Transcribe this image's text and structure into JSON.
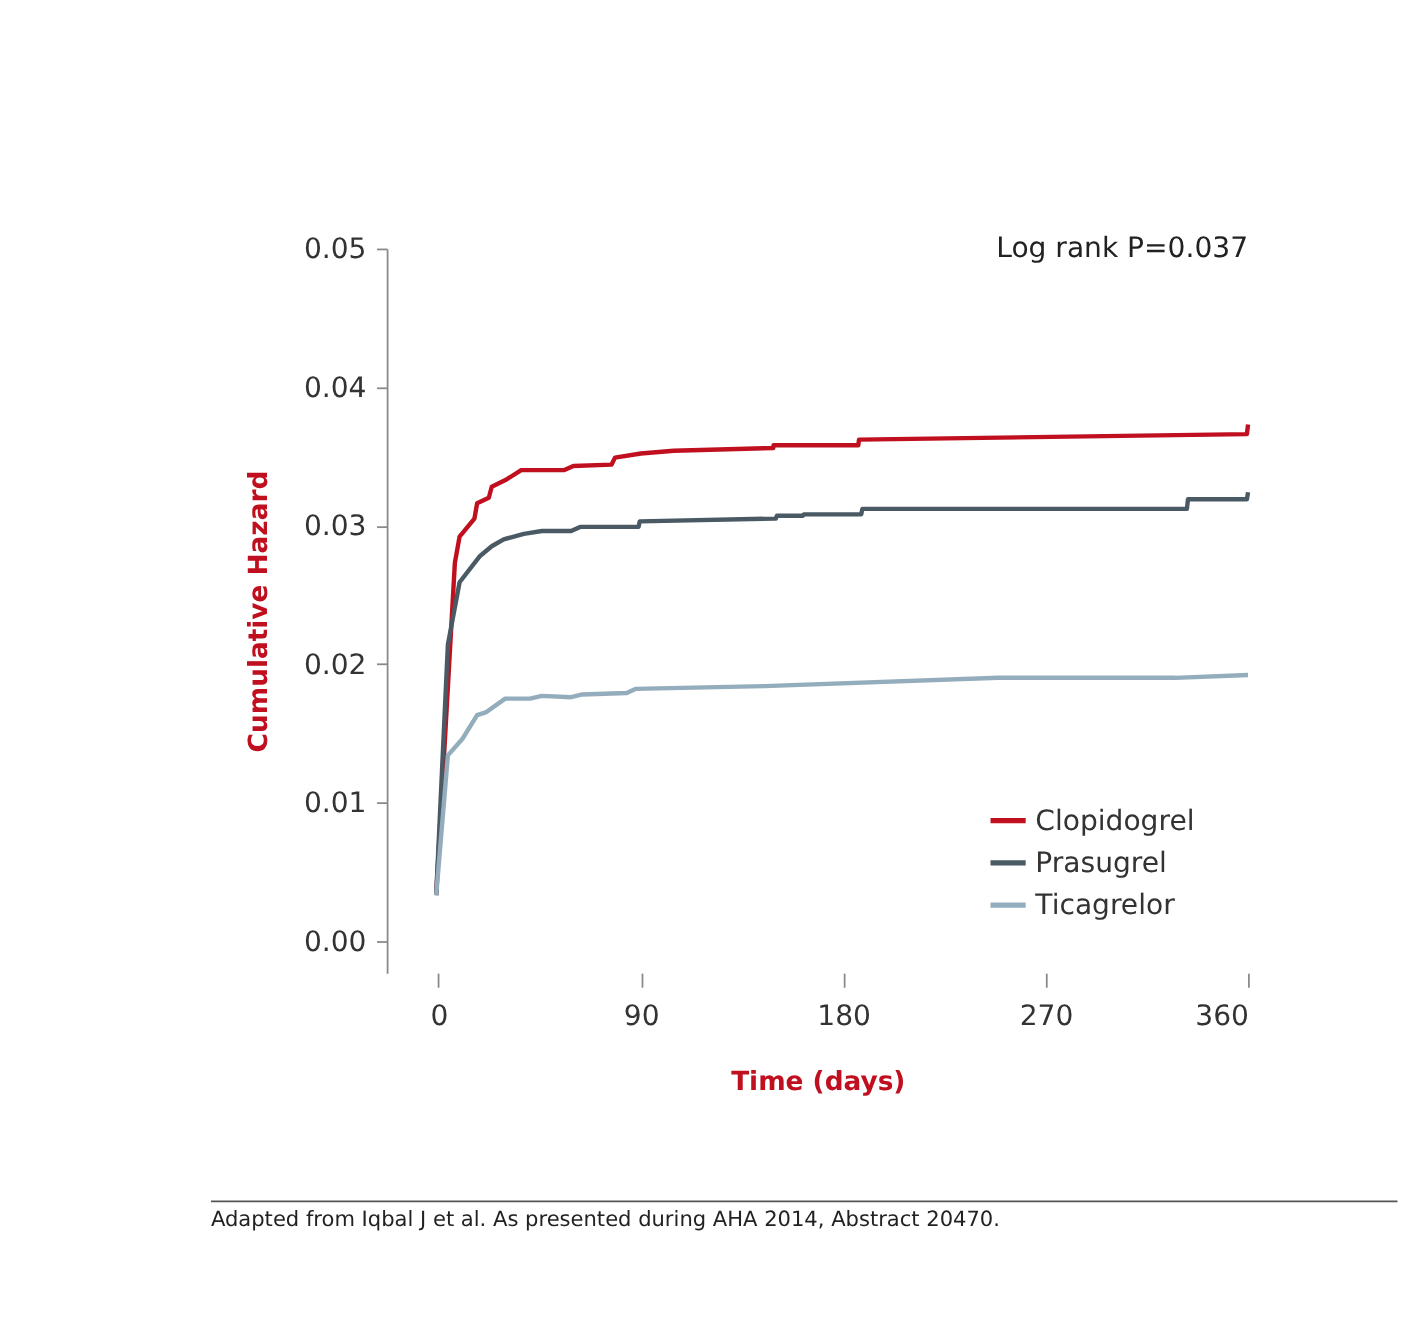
{
  "chart_data": {
    "type": "line",
    "xlabel": "Time (days)",
    "ylabel": "Cumulative Hazard",
    "xlim": [
      -23,
      360
    ],
    "xticks": [
      0,
      90,
      180,
      270,
      360
    ],
    "ylim": [
      -0.0023,
      0.05
    ],
    "yticks": [
      {
        "value": 0,
        "label": "0.00"
      },
      0.01,
      0.02,
      0.03,
      0.04,
      0.05
    ],
    "grid": false,
    "legend": "bottom right",
    "marker": "none",
    "line_style": "solid",
    "series": [
      {
        "name": "Clopidogrel",
        "color": "#c0101f",
        "x": [
          -1,
          7.3,
          9.4,
          16,
          17.2,
          22.4,
          23.7,
          30,
          36.8,
          56,
          60,
          77,
          78.5,
          90,
          104.6,
          148.9,
          149,
          186.7,
          187,
          359.5,
          360
        ],
        "values": [
          0.0033,
          0.0273,
          0.0292,
          0.0305,
          0.0316,
          0.032,
          0.0328,
          0.0333,
          0.034,
          0.034,
          0.0343,
          0.0344,
          0.0349,
          0.0352,
          0.0354,
          0.0356,
          0.0358,
          0.0358,
          0.0362,
          0.0366,
          0.0373
        ]
      },
      {
        "name": "Prasugrel",
        "color": "#4a5a65",
        "x": [
          -1,
          4.2,
          9.4,
          18.5,
          23.7,
          29,
          38,
          46,
          59,
          63,
          89,
          89.5,
          150,
          150.5,
          162,
          162.5,
          188,
          188.5,
          332.8,
          333.3,
          359.5,
          360
        ],
        "values": [
          0.0033,
          0.0214,
          0.0259,
          0.0278,
          0.0285,
          0.029,
          0.0294,
          0.0296,
          0.0296,
          0.0299,
          0.0299,
          0.0303,
          0.0305,
          0.0307,
          0.0307,
          0.0308,
          0.0308,
          0.0312,
          0.0312,
          0.0319,
          0.0319,
          0.0324
        ]
      },
      {
        "name": "Ticagrelor",
        "color": "#94adbd",
        "x": [
          -1,
          4.2,
          10.7,
          17.2,
          21,
          29.7,
          40.7,
          46,
          59,
          64,
          83.7,
          87.6,
          145,
          249,
          327.6,
          360
        ],
        "values": [
          0.0033,
          0.0134,
          0.0146,
          0.0163,
          0.0165,
          0.0175,
          0.0175,
          0.0177,
          0.0176,
          0.0178,
          0.0179,
          0.0182,
          0.0184,
          0.019,
          0.019,
          0.0192
        ]
      }
    ],
    "annotations": [
      "Log rank P=0.037",
      "Adapted from Iqbal J et al. As presented during AHA 2014, Abstract 20470."
    ]
  }
}
